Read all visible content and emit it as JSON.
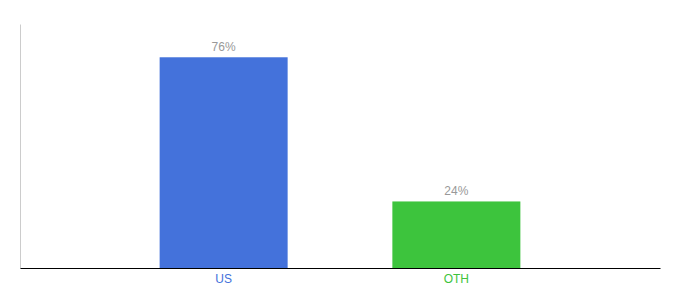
{
  "chart_data": {
    "type": "bar",
    "categories": [
      "US",
      "OTH"
    ],
    "values": [
      76,
      24
    ],
    "value_labels": [
      "76%",
      "24%"
    ],
    "colors": [
      "#4472db",
      "#3dc43d"
    ],
    "ylim": [
      0,
      88
    ],
    "data_labels": true,
    "tick_labels": "x"
  }
}
